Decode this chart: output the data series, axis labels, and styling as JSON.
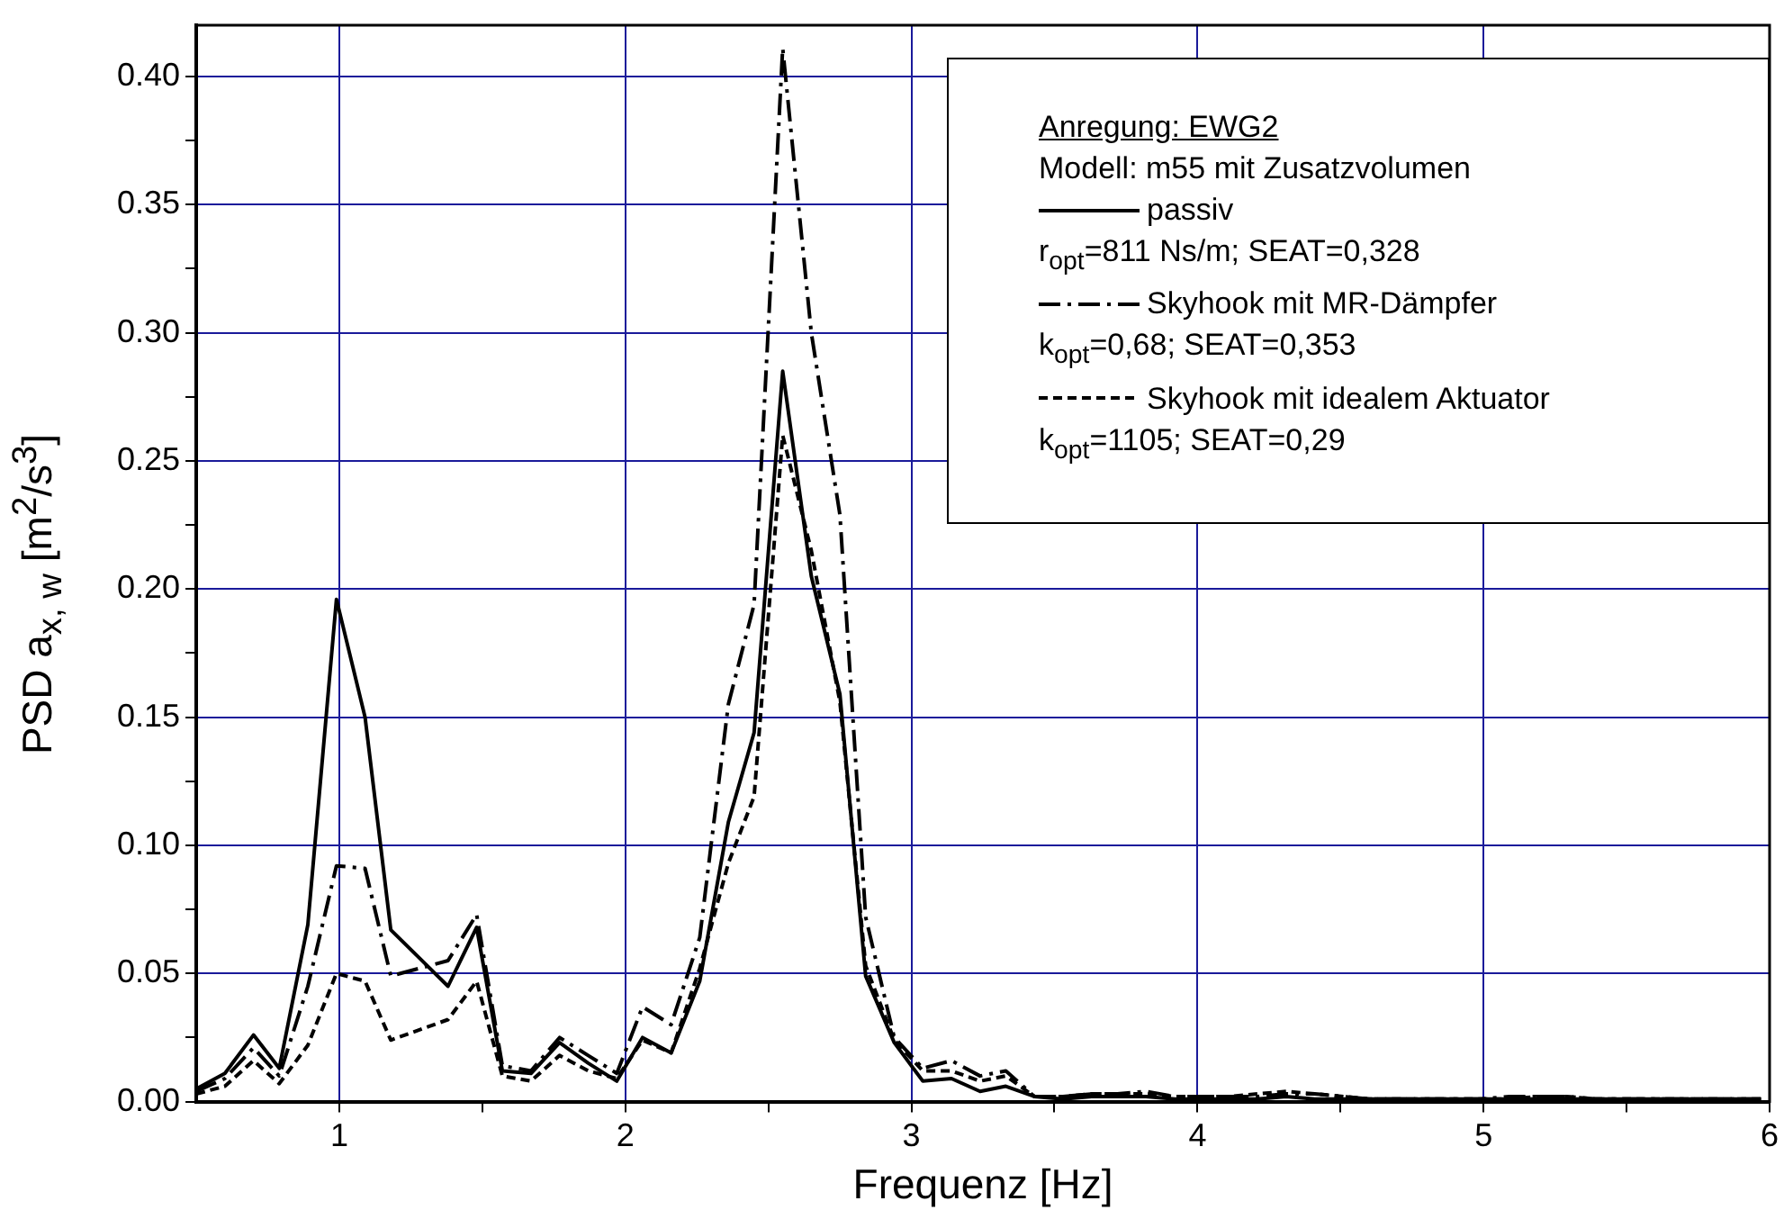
{
  "chart_data": {
    "type": "line",
    "xlabel": "Frequenz [Hz]",
    "ylabel": "PSD a$_{x, w}$ [m$^{2}$/s$^{3}$]",
    "legend_title": "Anregung: EWG2",
    "annotations": [
      "Modell: m55 mit Zusatzvolumen",
      "r$_{opt}$=811 Ns/m; SEAT=0,328",
      "k$_{opt}$=0,68; SEAT=0,353",
      "k$_{opt}$=1105; SEAT=0,29"
    ],
    "x": [
      0.5,
      0.6,
      0.7,
      0.79,
      0.89,
      0.99,
      1.09,
      1.18,
      1.28,
      1.38,
      1.48,
      1.57,
      1.67,
      1.77,
      1.87,
      1.97,
      2.06,
      2.16,
      2.26,
      2.36,
      2.45,
      2.55,
      2.65,
      2.75,
      2.84,
      2.94,
      3.04,
      3.14,
      3.24,
      3.33,
      3.43,
      3.53,
      3.63,
      3.72,
      3.82,
      3.92,
      4.02,
      4.11,
      4.21,
      4.31,
      4.41,
      4.51,
      4.6,
      4.7,
      4.8,
      4.9,
      4.99,
      5.09,
      5.19,
      5.29,
      5.39,
      5.48,
      5.58,
      5.68,
      5.78,
      5.87,
      5.97
    ],
    "series": [
      {
        "name": "passiv",
        "color": "#000000",
        "line_style": "solid",
        "values": [
          0.005,
          0.011,
          0.026,
          0.013,
          0.069,
          0.196,
          0.15,
          0.067,
          0.056,
          0.045,
          0.068,
          0.012,
          0.011,
          0.023,
          0.015,
          0.008,
          0.025,
          0.019,
          0.047,
          0.109,
          0.144,
          0.285,
          0.205,
          0.159,
          0.049,
          0.023,
          0.008,
          0.009,
          0.004,
          0.006,
          0.002,
          0.001,
          0.002,
          0.002,
          0.002,
          0.001,
          0.001,
          0.001,
          0.001,
          0.002,
          0.001,
          0.001,
          0.001,
          0.001,
          0.001,
          0.001,
          0.001,
          0.001,
          0.001,
          0.001,
          0.001,
          0.001,
          0.001,
          0.001,
          0.001,
          0.001,
          0.001
        ]
      },
      {
        "name": "Skyhook mit MR-Dämpfer",
        "color": "#000000",
        "line_style": "dashdot",
        "values": [
          0.004,
          0.009,
          0.021,
          0.01,
          0.045,
          0.092,
          0.091,
          0.049,
          0.052,
          0.055,
          0.073,
          0.014,
          0.012,
          0.025,
          0.018,
          0.011,
          0.037,
          0.03,
          0.064,
          0.155,
          0.194,
          0.411,
          0.3,
          0.229,
          0.072,
          0.025,
          0.013,
          0.016,
          0.01,
          0.012,
          0.002,
          0.002,
          0.003,
          0.003,
          0.004,
          0.002,
          0.002,
          0.002,
          0.002,
          0.003,
          0.003,
          0.002,
          0.001,
          0.001,
          0.001,
          0.001,
          0.001,
          0.002,
          0.002,
          0.002,
          0.001,
          0.001,
          0.001,
          0.001,
          0.001,
          0.001,
          0.001
        ]
      },
      {
        "name": "Skyhook mit idealem Aktuator",
        "color": "#000000",
        "line_style": "dashed",
        "values": [
          0.003,
          0.006,
          0.016,
          0.007,
          0.022,
          0.05,
          0.047,
          0.024,
          0.028,
          0.032,
          0.047,
          0.01,
          0.008,
          0.018,
          0.012,
          0.009,
          0.024,
          0.019,
          0.052,
          0.093,
          0.119,
          0.26,
          0.215,
          0.156,
          0.053,
          0.024,
          0.012,
          0.012,
          0.008,
          0.01,
          0.002,
          0.002,
          0.003,
          0.003,
          0.003,
          0.002,
          0.002,
          0.002,
          0.003,
          0.004,
          0.003,
          0.002,
          0.001,
          0.001,
          0.001,
          0.001,
          0.001,
          0.001,
          0.002,
          0.002,
          0.001,
          0.001,
          0.001,
          0.001,
          0.001,
          0.001,
          0.001
        ]
      }
    ],
    "xlim": [
      0.5,
      6
    ],
    "xticks": [
      1,
      {
        "value": 1.5,
        "label": null
      },
      2,
      {
        "value": 2.5,
        "label": null
      },
      3,
      {
        "value": 3.5,
        "label": null
      },
      4,
      {
        "value": 4.5,
        "label": null
      },
      5,
      {
        "value": 5.5,
        "label": null
      },
      6
    ],
    "ylim": [
      0,
      0.42
    ],
    "yticks": [
      {
        "value": 0,
        "label": "0.00"
      },
      {
        "value": 0.025,
        "label": null
      },
      0.05,
      {
        "value": 0.075,
        "label": null
      },
      {
        "value": 0.1,
        "label": "0.10"
      },
      {
        "value": 0.125,
        "label": null
      },
      0.15,
      {
        "value": 0.175,
        "label": null
      },
      {
        "value": 0.2,
        "label": "0.20"
      },
      {
        "value": 0.225,
        "label": null
      },
      0.25,
      {
        "value": 0.275,
        "label": null
      },
      {
        "value": 0.3,
        "label": "0.30"
      },
      {
        "value": 0.325,
        "label": null
      },
      0.35,
      {
        "value": 0.375,
        "label": null
      },
      {
        "value": 0.4,
        "label": "0.40"
      }
    ],
    "grid": true,
    "legend": "top right",
    "marker": "none"
  }
}
